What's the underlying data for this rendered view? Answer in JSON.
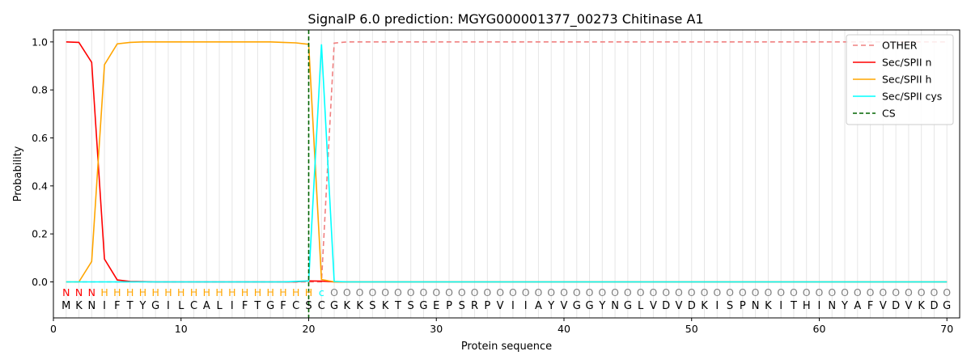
{
  "chart_data": {
    "type": "line",
    "title": "SignalP 6.0 prediction: MGYG000001377_00273 Chitinase A1",
    "xlabel": "Protein sequence",
    "ylabel": "Probability",
    "xlim": [
      0,
      71
    ],
    "ylim": [
      -0.15,
      1.05
    ],
    "xticks": [
      0,
      10,
      20,
      30,
      40,
      50,
      60,
      70
    ],
    "yticks": [
      0.0,
      0.2,
      0.4,
      0.6,
      0.8,
      1.0
    ],
    "xtick_labels": [
      "0",
      "10",
      "20",
      "30",
      "40",
      "50",
      "60",
      "70"
    ],
    "ytick_labels": [
      "0.0",
      "0.2",
      "0.4",
      "0.6",
      "0.8",
      "1.0"
    ],
    "legend_position": "top-right",
    "grid": "vertical lines at each residue",
    "sequence": [
      "M",
      "K",
      "N",
      "I",
      "F",
      "T",
      "Y",
      "G",
      "I",
      "L",
      "C",
      "A",
      "L",
      "I",
      "F",
      "T",
      "G",
      "F",
      "C",
      "S",
      "C",
      "G",
      "K",
      "K",
      "S",
      "K",
      "T",
      "S",
      "G",
      "E",
      "P",
      "S",
      "R",
      "P",
      "V",
      "I",
      "I",
      "A",
      "Y",
      "V",
      "G",
      "G",
      "Y",
      "N",
      "G",
      "L",
      "V",
      "D",
      "V",
      "D",
      "K",
      "I",
      "S",
      "P",
      "N",
      "K",
      "I",
      "T",
      "H",
      "I",
      "N",
      "Y",
      "A",
      "F",
      "V",
      "D",
      "V",
      "K",
      "D",
      "G"
    ],
    "labels": [
      "N",
      "N",
      "N",
      "H",
      "H",
      "H",
      "H",
      "H",
      "H",
      "H",
      "H",
      "H",
      "H",
      "H",
      "H",
      "H",
      "H",
      "H",
      "H",
      "H",
      "c",
      "O",
      "O",
      "O",
      "O",
      "O",
      "O",
      "O",
      "O",
      "O",
      "O",
      "O",
      "O",
      "O",
      "O",
      "O",
      "O",
      "O",
      "O",
      "O",
      "O",
      "O",
      "O",
      "O",
      "O",
      "O",
      "O",
      "O",
      "O",
      "O",
      "O",
      "O",
      "O",
      "O",
      "O",
      "O",
      "O",
      "O",
      "O",
      "O",
      "O",
      "O",
      "O",
      "O",
      "O",
      "O",
      "O",
      "O",
      "O",
      "O"
    ],
    "label_colors": {
      "N": "#ff0000",
      "H": "#ffa500",
      "c": "#00ffff",
      "O": "#808080"
    },
    "x": [
      1,
      2,
      3,
      4,
      5,
      6,
      7,
      8,
      9,
      10,
      11,
      12,
      13,
      14,
      15,
      16,
      17,
      18,
      19,
      20,
      21,
      22,
      23,
      24,
      25,
      26,
      27,
      28,
      29,
      30,
      31,
      32,
      33,
      34,
      35,
      36,
      37,
      38,
      39,
      40,
      41,
      42,
      43,
      44,
      45,
      46,
      47,
      48,
      49,
      50,
      51,
      52,
      53,
      54,
      55,
      56,
      57,
      58,
      59,
      60,
      61,
      62,
      63,
      64,
      65,
      66,
      67,
      68,
      69,
      70
    ],
    "series": [
      {
        "name": "OTHER",
        "color": "#f08080",
        "dash": "6,4",
        "values": [
          0,
          0,
          0,
          0,
          0,
          0,
          0,
          0,
          0,
          0,
          0,
          0,
          0,
          0,
          0,
          0,
          0,
          0,
          0,
          0,
          0,
          0.995,
          1,
          1,
          1,
          1,
          1,
          1,
          1,
          1,
          1,
          1,
          1,
          1,
          1,
          1,
          1,
          1,
          1,
          1,
          1,
          1,
          1,
          1,
          1,
          1,
          1,
          1,
          1,
          1,
          1,
          1,
          1,
          1,
          1,
          1,
          1,
          1,
          1,
          1,
          1,
          1,
          1,
          1,
          1,
          1,
          1,
          1,
          1,
          1
        ]
      },
      {
        "name": "Sec/SPII n",
        "color": "#ff0000",
        "dash": "",
        "values": [
          1.0,
          0.998,
          0.915,
          0.095,
          0.008,
          0.002,
          0.001,
          0,
          0,
          0,
          0,
          0,
          0,
          0,
          0,
          0,
          0,
          0,
          0,
          0.004,
          0.003,
          0,
          0,
          0,
          0,
          0,
          0,
          0,
          0,
          0,
          0,
          0,
          0,
          0,
          0,
          0,
          0,
          0,
          0,
          0,
          0,
          0,
          0,
          0,
          0,
          0,
          0,
          0,
          0,
          0,
          0,
          0,
          0,
          0,
          0,
          0,
          0,
          0,
          0,
          0,
          0,
          0,
          0,
          0,
          0,
          0,
          0,
          0,
          0,
          0
        ]
      },
      {
        "name": "Sec/SPII h",
        "color": "#ffa500",
        "dash": "",
        "values": [
          0,
          0,
          0.085,
          0.905,
          0.992,
          0.998,
          1.0,
          1.0,
          1.0,
          1.0,
          1.0,
          1.0,
          1.0,
          1.0,
          1.0,
          1.0,
          1.0,
          0.998,
          0.996,
          0.99,
          0.01,
          0,
          0,
          0,
          0,
          0,
          0,
          0,
          0,
          0,
          0,
          0,
          0,
          0,
          0,
          0,
          0,
          0,
          0,
          0,
          0,
          0,
          0,
          0,
          0,
          0,
          0,
          0,
          0,
          0,
          0,
          0,
          0,
          0,
          0,
          0,
          0,
          0,
          0,
          0,
          0,
          0,
          0,
          0,
          0,
          0,
          0,
          0,
          0,
          0
        ]
      },
      {
        "name": "Sec/SPII cys",
        "color": "#00ffff",
        "dash": "",
        "values": [
          0,
          0,
          0,
          0,
          0,
          0,
          0,
          0,
          0,
          0,
          0,
          0,
          0,
          0,
          0,
          0,
          0,
          0,
          0.002,
          0.004,
          0.99,
          0.002,
          0,
          0,
          0,
          0,
          0,
          0,
          0,
          0,
          0,
          0,
          0,
          0,
          0,
          0,
          0,
          0,
          0,
          0,
          0,
          0,
          0,
          0,
          0,
          0,
          0,
          0,
          0,
          0,
          0,
          0,
          0,
          0,
          0,
          0,
          0,
          0,
          0,
          0,
          0,
          0,
          0,
          0,
          0,
          0,
          0,
          0,
          0,
          0
        ]
      }
    ],
    "cs_line": {
      "name": "CS",
      "x": 20,
      "color": "#006400"
    }
  }
}
